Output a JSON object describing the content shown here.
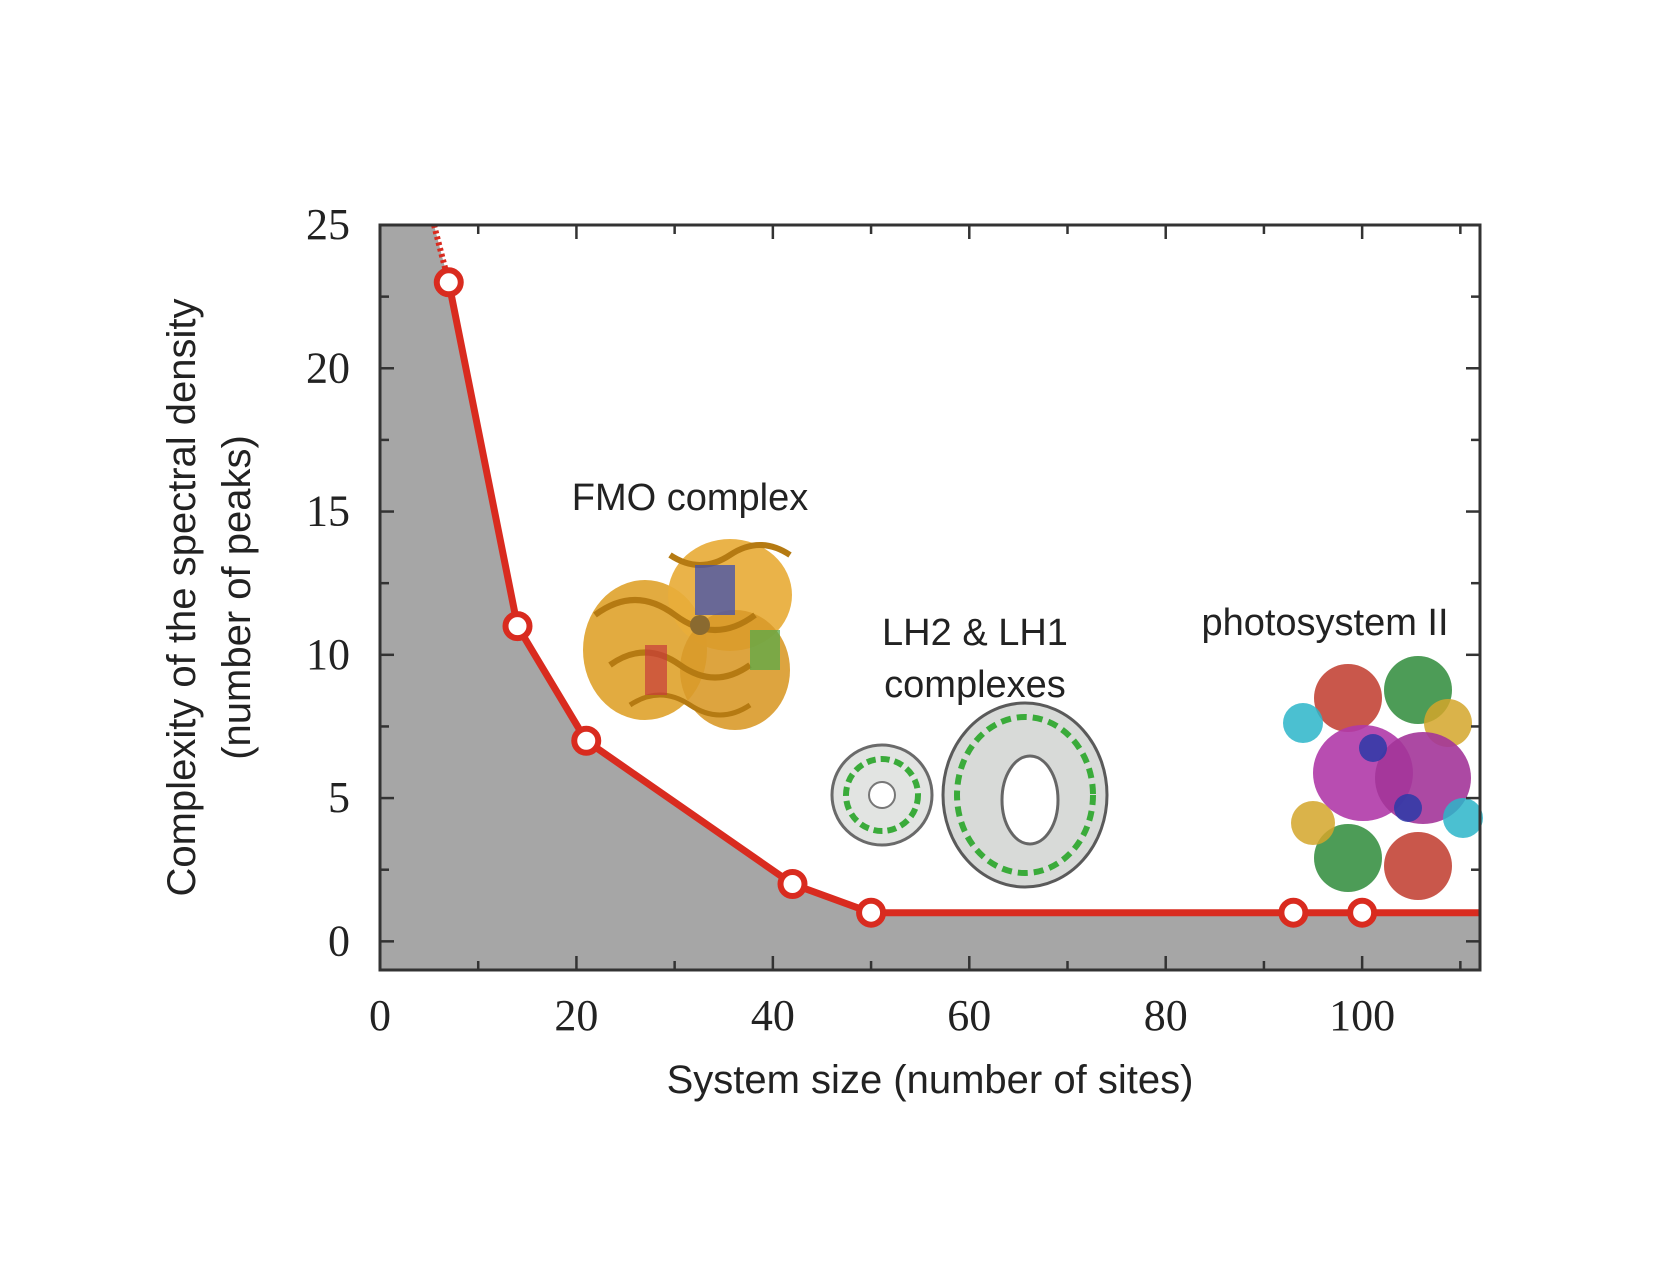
{
  "chart_data": {
    "type": "area",
    "xlabel": "System size (number of sites)",
    "ylabel_lines": [
      "Complexity of the spectral density",
      "(number of peaks)"
    ],
    "xlim": [
      0,
      112
    ],
    "ylim": [
      -1,
      25
    ],
    "xticks": [
      0,
      20,
      40,
      60,
      80,
      100
    ],
    "yticks": [
      0,
      5,
      10,
      15,
      20,
      25
    ],
    "grid": false,
    "series": [
      {
        "color": "#d92b1f",
        "fill": "#a6a6a6",
        "x": [
          7,
          14,
          21,
          42,
          50,
          93,
          100
        ],
        "y": [
          23,
          11,
          7,
          2,
          1,
          1,
          1
        ]
      }
    ],
    "extrapolation": {
      "x": [
        5.5,
        7
      ],
      "y": [
        25,
        23
      ]
    },
    "tail": {
      "x": [
        100,
        112
      ],
      "y": [
        1,
        1
      ]
    },
    "annotations": [
      {
        "name": "fmo",
        "lines": [
          "FMO complex"
        ]
      },
      {
        "name": "lh",
        "lines": [
          "LH2 & LH1",
          "complexes"
        ]
      },
      {
        "name": "ps2",
        "lines": [
          "photosystem II"
        ]
      }
    ]
  }
}
